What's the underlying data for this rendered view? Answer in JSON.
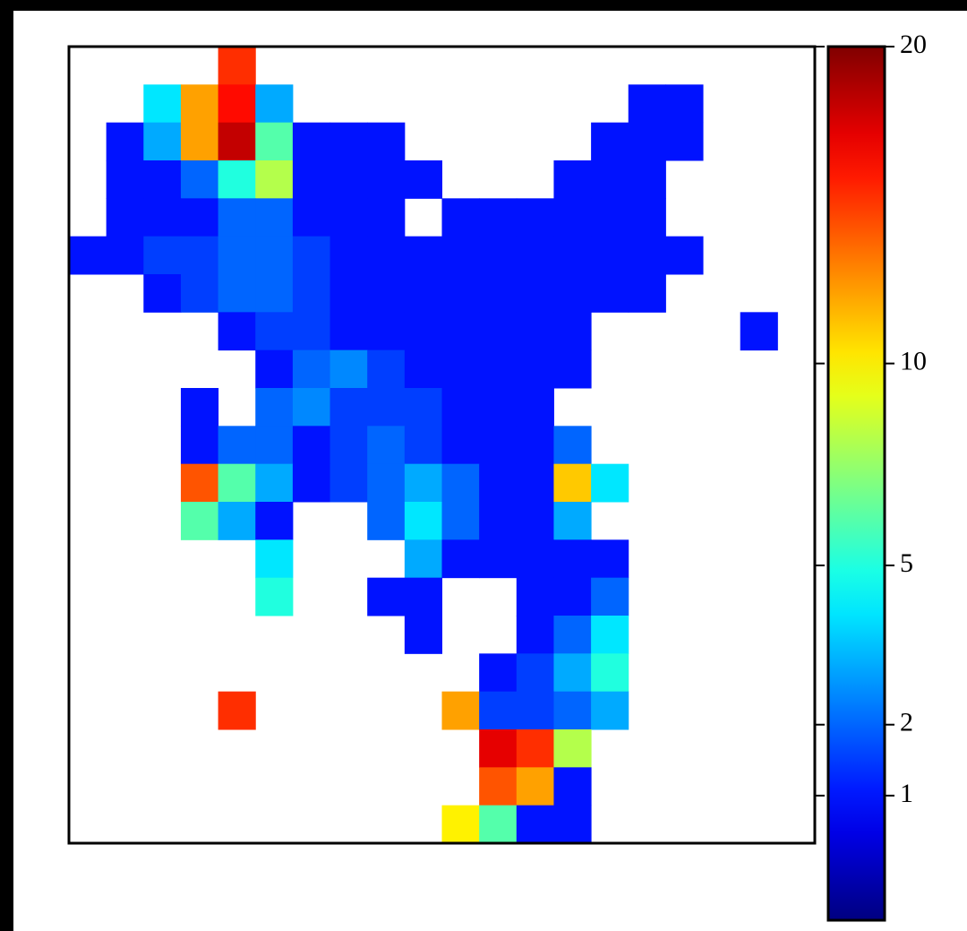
{
  "chart_data": {
    "type": "heatmap",
    "z": [
      [
        null,
        null,
        null,
        null,
        15,
        null,
        null,
        null,
        null,
        null,
        null,
        null,
        null,
        null,
        null,
        null,
        null,
        null,
        null,
        null
      ],
      [
        null,
        null,
        4,
        12,
        16,
        3,
        null,
        null,
        null,
        null,
        null,
        null,
        null,
        null,
        null,
        1,
        1,
        null,
        null,
        null
      ],
      [
        null,
        1,
        3,
        12,
        18,
        6,
        1,
        1,
        1,
        null,
        null,
        null,
        null,
        null,
        1,
        1,
        1,
        null,
        null,
        null
      ],
      [
        null,
        1,
        1,
        2,
        5,
        8,
        1,
        1,
        1,
        1,
        null,
        null,
        null,
        1,
        1,
        1,
        null,
        null,
        null,
        null
      ],
      [
        null,
        1,
        1,
        1,
        2,
        2,
        1,
        1,
        1,
        null,
        1,
        1,
        1,
        1,
        1,
        1,
        null,
        null,
        null,
        null
      ],
      [
        1,
        1,
        1.5,
        1.5,
        2,
        2,
        1.5,
        1,
        1,
        1,
        1,
        1,
        1,
        1,
        1,
        1,
        1,
        null,
        null,
        null
      ],
      [
        null,
        null,
        1,
        1.5,
        2,
        2,
        1.5,
        1,
        1,
        1,
        1,
        1,
        1,
        1,
        1,
        1,
        null,
        null,
        null,
        null
      ],
      [
        null,
        null,
        null,
        null,
        1,
        1.5,
        1.5,
        1,
        1,
        1,
        1,
        1,
        1,
        1,
        null,
        null,
        null,
        null,
        1,
        null
      ],
      [
        null,
        null,
        null,
        null,
        null,
        1,
        2,
        2.5,
        1.5,
        1,
        1,
        1,
        1,
        1,
        null,
        null,
        null,
        null,
        null,
        null
      ],
      [
        null,
        null,
        null,
        1,
        null,
        2,
        2.5,
        1.5,
        1.5,
        1.5,
        1,
        1,
        1,
        null,
        null,
        null,
        null,
        null,
        null,
        null
      ],
      [
        null,
        null,
        null,
        1,
        2,
        2,
        1,
        1.5,
        2,
        1.5,
        1,
        1,
        1,
        2,
        null,
        null,
        null,
        null,
        null,
        null
      ],
      [
        null,
        null,
        null,
        14,
        6,
        3,
        1,
        1.5,
        2,
        3,
        2,
        1,
        1,
        11,
        4,
        null,
        null,
        null,
        null,
        null
      ],
      [
        null,
        null,
        null,
        6,
        3,
        1,
        null,
        null,
        2,
        4,
        2,
        1,
        1,
        3,
        null,
        null,
        null,
        null,
        null,
        null
      ],
      [
        null,
        null,
        null,
        null,
        null,
        4,
        null,
        null,
        null,
        3,
        1,
        1,
        1,
        1,
        1,
        null,
        null,
        null,
        null,
        null
      ],
      [
        null,
        null,
        null,
        null,
        null,
        5,
        null,
        null,
        1,
        1,
        null,
        null,
        1,
        1,
        2,
        null,
        null,
        null,
        null,
        null
      ],
      [
        null,
        null,
        null,
        null,
        null,
        null,
        null,
        null,
        null,
        1,
        null,
        null,
        1,
        2,
        4,
        null,
        null,
        null,
        null,
        null
      ],
      [
        null,
        null,
        null,
        null,
        null,
        null,
        null,
        null,
        null,
        null,
        null,
        1,
        1.5,
        3,
        5,
        null,
        null,
        null,
        null,
        null
      ],
      [
        null,
        null,
        null,
        null,
        15,
        null,
        null,
        null,
        null,
        null,
        12,
        1.5,
        1.5,
        2,
        3,
        null,
        null,
        null,
        null,
        null
      ],
      [
        null,
        null,
        null,
        null,
        null,
        null,
        null,
        null,
        null,
        null,
        null,
        17,
        15,
        8,
        null,
        null,
        null,
        null,
        null,
        null
      ],
      [
        null,
        null,
        null,
        null,
        null,
        null,
        null,
        null,
        null,
        null,
        null,
        14,
        12,
        1,
        null,
        null,
        null,
        null,
        null,
        null
      ],
      [
        null,
        null,
        null,
        null,
        null,
        null,
        null,
        null,
        null,
        null,
        10,
        6,
        1,
        1,
        null,
        null,
        null,
        null,
        null,
        null
      ]
    ],
    "colormap": "jet",
    "color_norm": {
      "type": "power",
      "gamma": 0.65
    },
    "clim": [
      0,
      20
    ],
    "colorbar_ticks": [
      1,
      2,
      5,
      10,
      20
    ]
  }
}
